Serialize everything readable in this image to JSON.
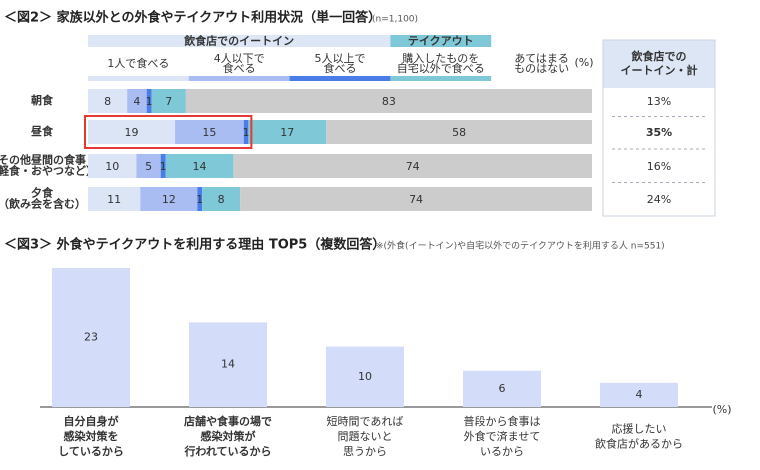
{
  "chart_data": [
    {
      "type": "stacked-bar-percent",
      "title": "＜図2＞ 家族以外との外食やテイクアウト利用状況（単一回答）",
      "subtitle": "(n=1,100)",
      "groups": [
        {
          "name": "飲食店でのイートイン",
          "span": [
            0,
            2
          ],
          "color": "#dde6f5"
        },
        {
          "name": "テイクアウト",
          "span": [
            3,
            3
          ],
          "color": "#7ec8d8"
        }
      ],
      "categories": [
        [
          "朝食"
        ],
        [
          "昼食"
        ],
        [
          "その他昼間の食事",
          "（軽食・おやつなど）"
        ],
        [
          "夕食",
          "（飲み会を含む）"
        ]
      ],
      "series": [
        {
          "name": [
            "1人で食べる"
          ],
          "color": "#dbe5f5",
          "values": [
            8,
            19,
            10,
            11
          ]
        },
        {
          "name": [
            "4人以下で",
            "食べる"
          ],
          "color": "#a9bdf2",
          "values": [
            4,
            15,
            5,
            12
          ]
        },
        {
          "name": [
            "5人以上で",
            "食べる"
          ],
          "color": "#4a7de8",
          "values": [
            1,
            1,
            1,
            1
          ]
        },
        {
          "name": [
            "購入したものを",
            "自宅以外で食べる"
          ],
          "color": "#7ec8d8",
          "values": [
            7,
            17,
            14,
            8
          ]
        },
        {
          "name": [
            "あてはまる",
            "ものはない"
          ],
          "color": "#cccccc",
          "values": [
            83,
            58,
            74,
            74
          ]
        }
      ],
      "unit_label": "(%)",
      "totals_header": [
        "飲食店での",
        "イートイン・計"
      ],
      "totals": [
        13,
        35,
        16,
        24
      ],
      "total_labels": [
        "13%",
        "35%",
        "16%",
        "24%"
      ],
      "highlight": 1,
      "highlight_color": "#e53935"
    },
    {
      "type": "bar",
      "title": "＜図3＞ 外食やテイクアウトを利用する理由 TOP5（複数回答）",
      "subtitle": "※(外食(イートイン)や自宅以外でのテイクアウトを利用する人 n=551)",
      "categories": [
        [
          "自分自身が",
          "感染対策を",
          "しているから"
        ],
        [
          "店舗や食事の場で",
          "感染対策が",
          "行われているから"
        ],
        [
          "短時間であれば",
          "問題ないと",
          "思うから"
        ],
        [
          "普段から食事は",
          "外食で済ませて",
          "いるから"
        ],
        [
          "応援したい",
          "飲食店があるから"
        ]
      ],
      "values": [
        23,
        14,
        10,
        6,
        4
      ],
      "color": "#d3dcf8",
      "unit_label": "(%)",
      "highlight": [
        0,
        1
      ],
      "highlight_color": "#1a3fb5"
    }
  ]
}
